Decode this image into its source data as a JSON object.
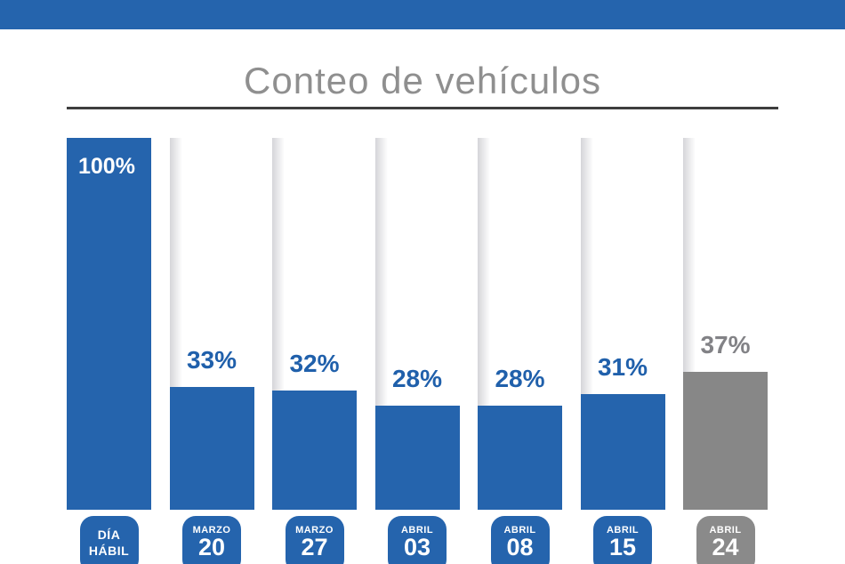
{
  "banner": {
    "color": "#2564AD"
  },
  "title": "Conteo de vehículos",
  "colors": {
    "bar_blue": "#2564AD",
    "bar_gray": "#878787",
    "label_blue": "#2060AB",
    "label_gray": "#828286",
    "badge_blue": "#2564AD",
    "badge_gray": "#8A8A8A",
    "title_gray": "#8F8F8F",
    "rule_dark": "#3E3E3E"
  },
  "chart_data": {
    "type": "bar",
    "title": "Conteo de vehículos",
    "xlabel": "",
    "ylabel": "",
    "unit": "%",
    "ylim": [
      0,
      100
    ],
    "grid": false,
    "legend": false,
    "categories": [
      "DÍA HÁBIL",
      "MARZO 20",
      "MARZO 27",
      "ABRIL 03",
      "ABRIL 08",
      "ABRIL 15",
      "ABRIL 24"
    ],
    "values": [
      100,
      33,
      32,
      28,
      28,
      31,
      37
    ],
    "bars": [
      {
        "value": 100,
        "value_label": "100%",
        "badge_top": "DÍA",
        "badge_day": "HÁBIL",
        "badge_style": "text",
        "color": "#2564AD",
        "label_color": "#FFFFFF",
        "badge_color": "#2564AD",
        "label_inside": true
      },
      {
        "value": 33,
        "value_label": "33%",
        "badge_top": "MARZO",
        "badge_day": "20",
        "badge_style": "date",
        "color": "#2564AD",
        "label_color": "#2060AB",
        "badge_color": "#2564AD",
        "label_inside": false
      },
      {
        "value": 32,
        "value_label": "32%",
        "badge_top": "MARZO",
        "badge_day": "27",
        "badge_style": "date",
        "color": "#2564AD",
        "label_color": "#2060AB",
        "badge_color": "#2564AD",
        "label_inside": false
      },
      {
        "value": 28,
        "value_label": "28%",
        "badge_top": "ABRIL",
        "badge_day": "03",
        "badge_style": "date",
        "color": "#2564AD",
        "label_color": "#2060AB",
        "badge_color": "#2564AD",
        "label_inside": false
      },
      {
        "value": 28,
        "value_label": "28%",
        "badge_top": "ABRIL",
        "badge_day": "08",
        "badge_style": "date",
        "color": "#2564AD",
        "label_color": "#2060AB",
        "badge_color": "#2564AD",
        "label_inside": false
      },
      {
        "value": 31,
        "value_label": "31%",
        "badge_top": "ABRIL",
        "badge_day": "15",
        "badge_style": "date",
        "color": "#2564AD",
        "label_color": "#2060AB",
        "badge_color": "#2564AD",
        "label_inside": false
      },
      {
        "value": 37,
        "value_label": "37%",
        "badge_top": "ABRIL",
        "badge_day": "24",
        "badge_style": "date",
        "color": "#878787",
        "label_color": "#828286",
        "badge_color": "#8A8A8A",
        "label_inside": false
      }
    ]
  }
}
